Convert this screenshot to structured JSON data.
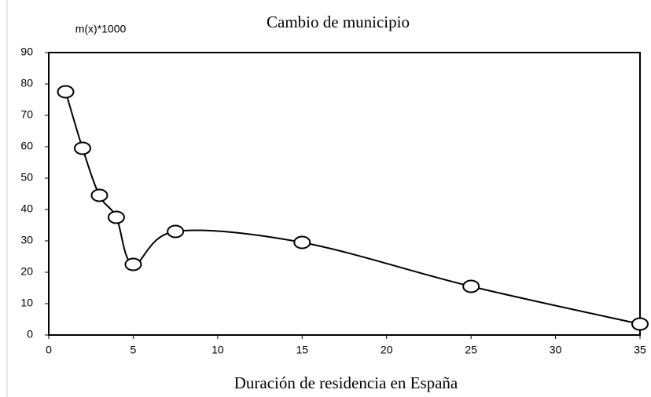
{
  "chart_data": {
    "type": "line",
    "title": "Cambio de municipio",
    "y_label": "m(x)*1000",
    "x_label": "Duración de residencia en España",
    "x": [
      1,
      2,
      3,
      4,
      5,
      7.5,
      15,
      25,
      35
    ],
    "values": [
      77.5,
      59.5,
      44.5,
      37.5,
      22.5,
      33,
      29.5,
      15.5,
      3.5
    ],
    "color": "#000000",
    "xlim": [
      0,
      35
    ],
    "xticks": [
      0,
      5,
      10,
      15,
      20,
      25,
      30,
      35
    ],
    "ylim": [
      0,
      90
    ],
    "yticks": [
      0,
      10,
      20,
      30,
      40,
      50,
      60,
      70,
      80,
      90
    ],
    "grid": false
  }
}
